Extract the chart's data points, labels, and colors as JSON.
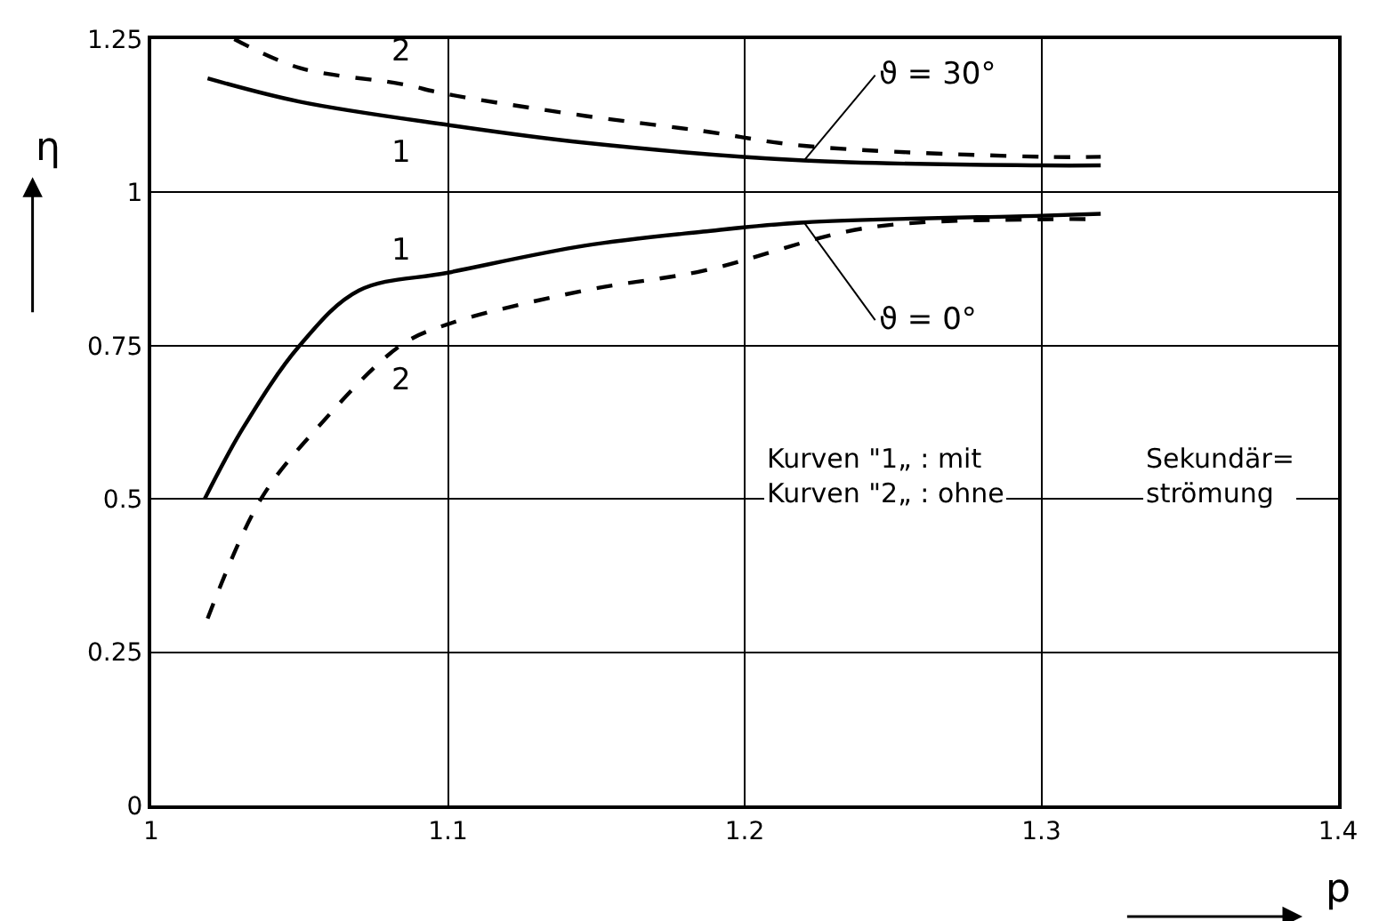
{
  "chart_data": {
    "type": "line",
    "xlabel": "p",
    "ylabel": "η",
    "xlim": [
      1,
      1.4
    ],
    "xticks": [
      1,
      1.1,
      1.2,
      1.3,
      1.4
    ],
    "ylim": [
      0,
      1.25
    ],
    "yticks": [
      0,
      0.25,
      0.5,
      0.75,
      1,
      1.25
    ],
    "grid": true,
    "legend": false,
    "marker": "none",
    "series": [
      {
        "name": "1",
        "color": "#000000",
        "line_style": "solid",
        "x": [
          1.019,
          1.05,
          1.1,
          1.146,
          1.22,
          1.3,
          1.32
        ],
        "values": [
          1.186,
          1.148,
          1.11,
          1.081,
          1.052,
          1.044,
          1.044
        ]
      },
      {
        "name": "2",
        "color": "#000000",
        "line_style": "dashed",
        "x": [
          1.028,
          1.05,
          1.084,
          1.1,
          1.146,
          1.186,
          1.22,
          1.3,
          1.32
        ],
        "values": [
          1.25,
          1.203,
          1.177,
          1.16,
          1.125,
          1.1,
          1.076,
          1.058,
          1.058
        ]
      },
      {
        "name": "1",
        "color": "#000000",
        "line_style": "solid",
        "x": [
          1.018,
          1.031,
          1.05,
          1.07,
          1.1,
          1.146,
          1.186,
          1.22,
          1.3,
          1.32
        ],
        "values": [
          0.5,
          0.616,
          0.75,
          0.84,
          0.869,
          0.913,
          0.936,
          0.951,
          0.962,
          0.965
        ]
      },
      {
        "name": "2",
        "color": "#000000",
        "line_style": "dashed",
        "x": [
          1.019,
          1.037,
          1.056,
          1.084,
          1.1,
          1.146,
          1.186,
          1.241,
          1.3,
          1.32
        ],
        "values": [
          0.305,
          0.5,
          0.616,
          0.75,
          0.785,
          0.84,
          0.872,
          0.942,
          0.956,
          0.956
        ]
      }
    ],
    "annotations": [
      {
        "text": "ϑ = 30°",
        "x": 1.22,
        "y": 1.052
      },
      {
        "text": "ϑ = 0°",
        "x": 1.22,
        "y": 0.951
      },
      "Kurven \"1„ : mit",
      "Kurven \"2„ : ohne",
      "Sekundär=",
      "strömung"
    ]
  }
}
